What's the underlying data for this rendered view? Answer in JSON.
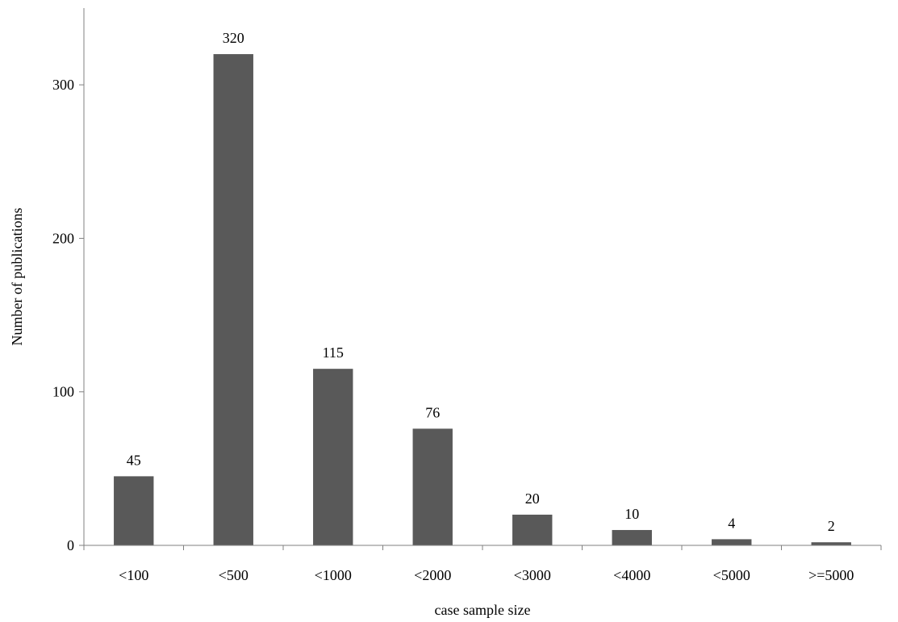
{
  "chart_data": {
    "type": "bar",
    "categories": [
      "<100",
      "<500",
      "<1000",
      "<2000",
      "<3000",
      "<4000",
      "<5000",
      ">=5000"
    ],
    "values": [
      45,
      320,
      115,
      76,
      20,
      10,
      4,
      2
    ],
    "data_labels": [
      "45",
      "320",
      "115",
      "76",
      "20",
      "10",
      "4",
      "2"
    ],
    "xlabel": "case sample size",
    "ylabel": "Number of publications",
    "ylim": [
      0,
      350
    ],
    "yticks": [
      0,
      100,
      200,
      300
    ],
    "grid": false,
    "legend": "none",
    "bar_color": "#595959"
  }
}
